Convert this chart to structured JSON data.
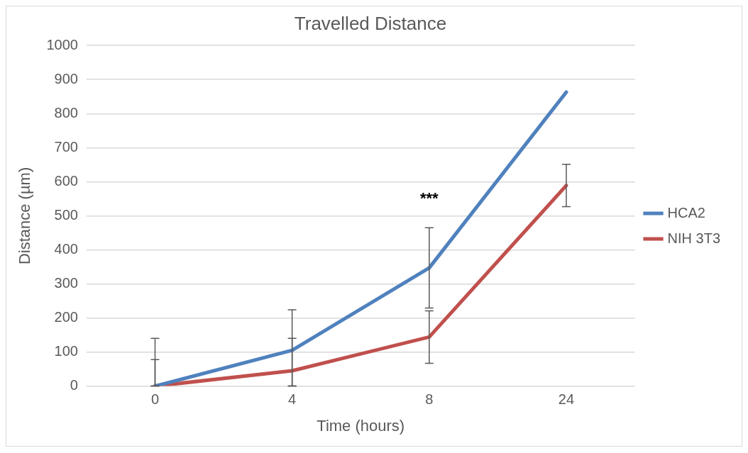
{
  "chart_data": {
    "type": "line",
    "title": "Travelled Distance",
    "xlabel": "Time (hours)",
    "ylabel": "Distance (µm)",
    "categories": [
      "0",
      "4",
      "8",
      "24"
    ],
    "series": [
      {
        "name": "HCA2",
        "color": "#4f81bd",
        "values": [
          0,
          105,
          347,
          863
        ],
        "errors": [
          [
            0,
            140
          ],
          [
            0,
            224
          ],
          118,
          null
        ]
      },
      {
        "name": "NIH 3T3",
        "color": "#c0504d",
        "values": [
          0,
          45,
          144,
          589
        ],
        "errors": [
          [
            0,
            78
          ],
          [
            0,
            140
          ],
          77,
          62
        ]
      }
    ],
    "ylim": [
      0,
      1000
    ],
    "yticks": [
      0,
      100,
      200,
      300,
      400,
      500,
      600,
      700,
      800,
      900,
      1000
    ],
    "grid": "y",
    "legend": "right",
    "marker": "none",
    "line_style": "solid",
    "annotations": [
      "***"
    ]
  }
}
